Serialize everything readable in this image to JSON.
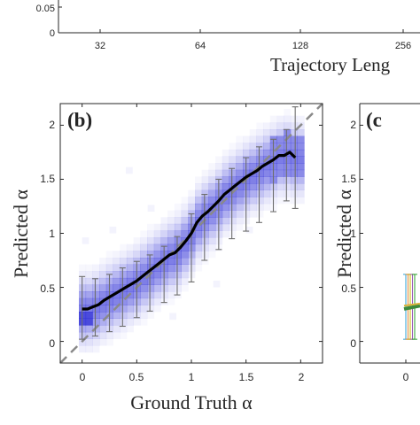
{
  "figure_top": {
    "y_tick_labels": [
      "0.05",
      "0"
    ],
    "x_tick_labels": [
      "32",
      "64",
      "128",
      "256"
    ],
    "xlabel": "Trajectory Leng"
  },
  "panel_b": {
    "panel_label": "(b)",
    "ylabel": "Predicted α",
    "xlabel": "Ground Truth α",
    "x_tick_labels": [
      "0",
      "0.5",
      "1",
      "1.5",
      "2"
    ],
    "y_tick_labels": [
      "0",
      "0.5",
      "1",
      "1.5",
      "2"
    ]
  },
  "panel_c": {
    "panel_label": "(c",
    "ylabel": "Predicted α",
    "x_tick_labels": [
      "0"
    ],
    "y_tick_labels": [
      "0",
      "0.5",
      "1",
      "1.5",
      "2"
    ]
  },
  "chart_data": [
    {
      "type": "line",
      "panel": "top",
      "xlabel": "Trajectory Leng",
      "x_ticks": [
        32,
        64,
        128,
        256
      ],
      "y_ticks": [
        0,
        0.05
      ],
      "xscale": "log2"
    },
    {
      "type": "line",
      "panel": "b",
      "xlabel": "Ground Truth α",
      "ylabel": "Predicted α",
      "xlim": [
        -0.2,
        2.2
      ],
      "ylim": [
        -0.2,
        2.2
      ],
      "x_ticks": [
        0,
        0.5,
        1,
        1.5,
        2
      ],
      "y_ticks": [
        0,
        0.5,
        1,
        1.5,
        2
      ],
      "grid": false,
      "heatmap_color": "#2b2bd6",
      "reference_line": {
        "x": [
          -0.2,
          2.2
        ],
        "y": [
          -0.2,
          2.2
        ],
        "style": "dashed",
        "color": "#8a8a8a"
      },
      "series": [
        {
          "color": "#000000",
          "x": [
            0,
            0.05,
            0.1,
            0.15,
            0.2,
            0.25,
            0.3,
            0.35,
            0.4,
            0.45,
            0.5,
            0.55,
            0.6,
            0.65,
            0.7,
            0.75,
            0.8,
            0.85,
            0.9,
            0.95,
            1.0,
            1.05,
            1.1,
            1.15,
            1.2,
            1.25,
            1.3,
            1.35,
            1.4,
            1.45,
            1.5,
            1.55,
            1.6,
            1.65,
            1.7,
            1.75,
            1.8,
            1.85,
            1.9,
            1.95
          ],
          "y": [
            0.3,
            0.3,
            0.32,
            0.34,
            0.38,
            0.41,
            0.44,
            0.47,
            0.5,
            0.53,
            0.56,
            0.6,
            0.64,
            0.68,
            0.72,
            0.76,
            0.8,
            0.82,
            0.87,
            0.93,
            1.0,
            1.1,
            1.16,
            1.2,
            1.25,
            1.3,
            1.36,
            1.4,
            1.44,
            1.48,
            1.52,
            1.55,
            1.58,
            1.62,
            1.65,
            1.68,
            1.72,
            1.72,
            1.75,
            1.7
          ]
        }
      ],
      "error_bars": {
        "x": [
          0,
          0.12,
          0.25,
          0.37,
          0.5,
          0.62,
          0.75,
          0.87,
          1.0,
          1.12,
          1.25,
          1.37,
          1.5,
          1.62,
          1.75,
          1.87,
          1.95
        ],
        "low": [
          0.02,
          0.05,
          0.09,
          0.14,
          0.22,
          0.28,
          0.36,
          0.43,
          0.55,
          0.75,
          0.85,
          0.95,
          1.02,
          1.1,
          1.2,
          1.3,
          1.23
        ],
        "high": [
          0.6,
          0.58,
          0.62,
          0.68,
          0.74,
          0.8,
          0.88,
          0.97,
          1.18,
          1.36,
          1.5,
          1.6,
          1.7,
          1.8,
          1.87,
          1.96,
          2.17
        ]
      }
    },
    {
      "type": "line",
      "panel": "c",
      "ylabel": "Predicted α",
      "ylim": [
        -0.2,
        2.2
      ],
      "y_ticks": [
        0,
        0.5,
        1,
        1.5,
        2
      ],
      "x_ticks": [
        0
      ],
      "series": [
        {
          "color": "#2ca02c",
          "x": [
            0,
            0.05
          ],
          "y": [
            0.31,
            0.33
          ]
        }
      ]
    }
  ]
}
